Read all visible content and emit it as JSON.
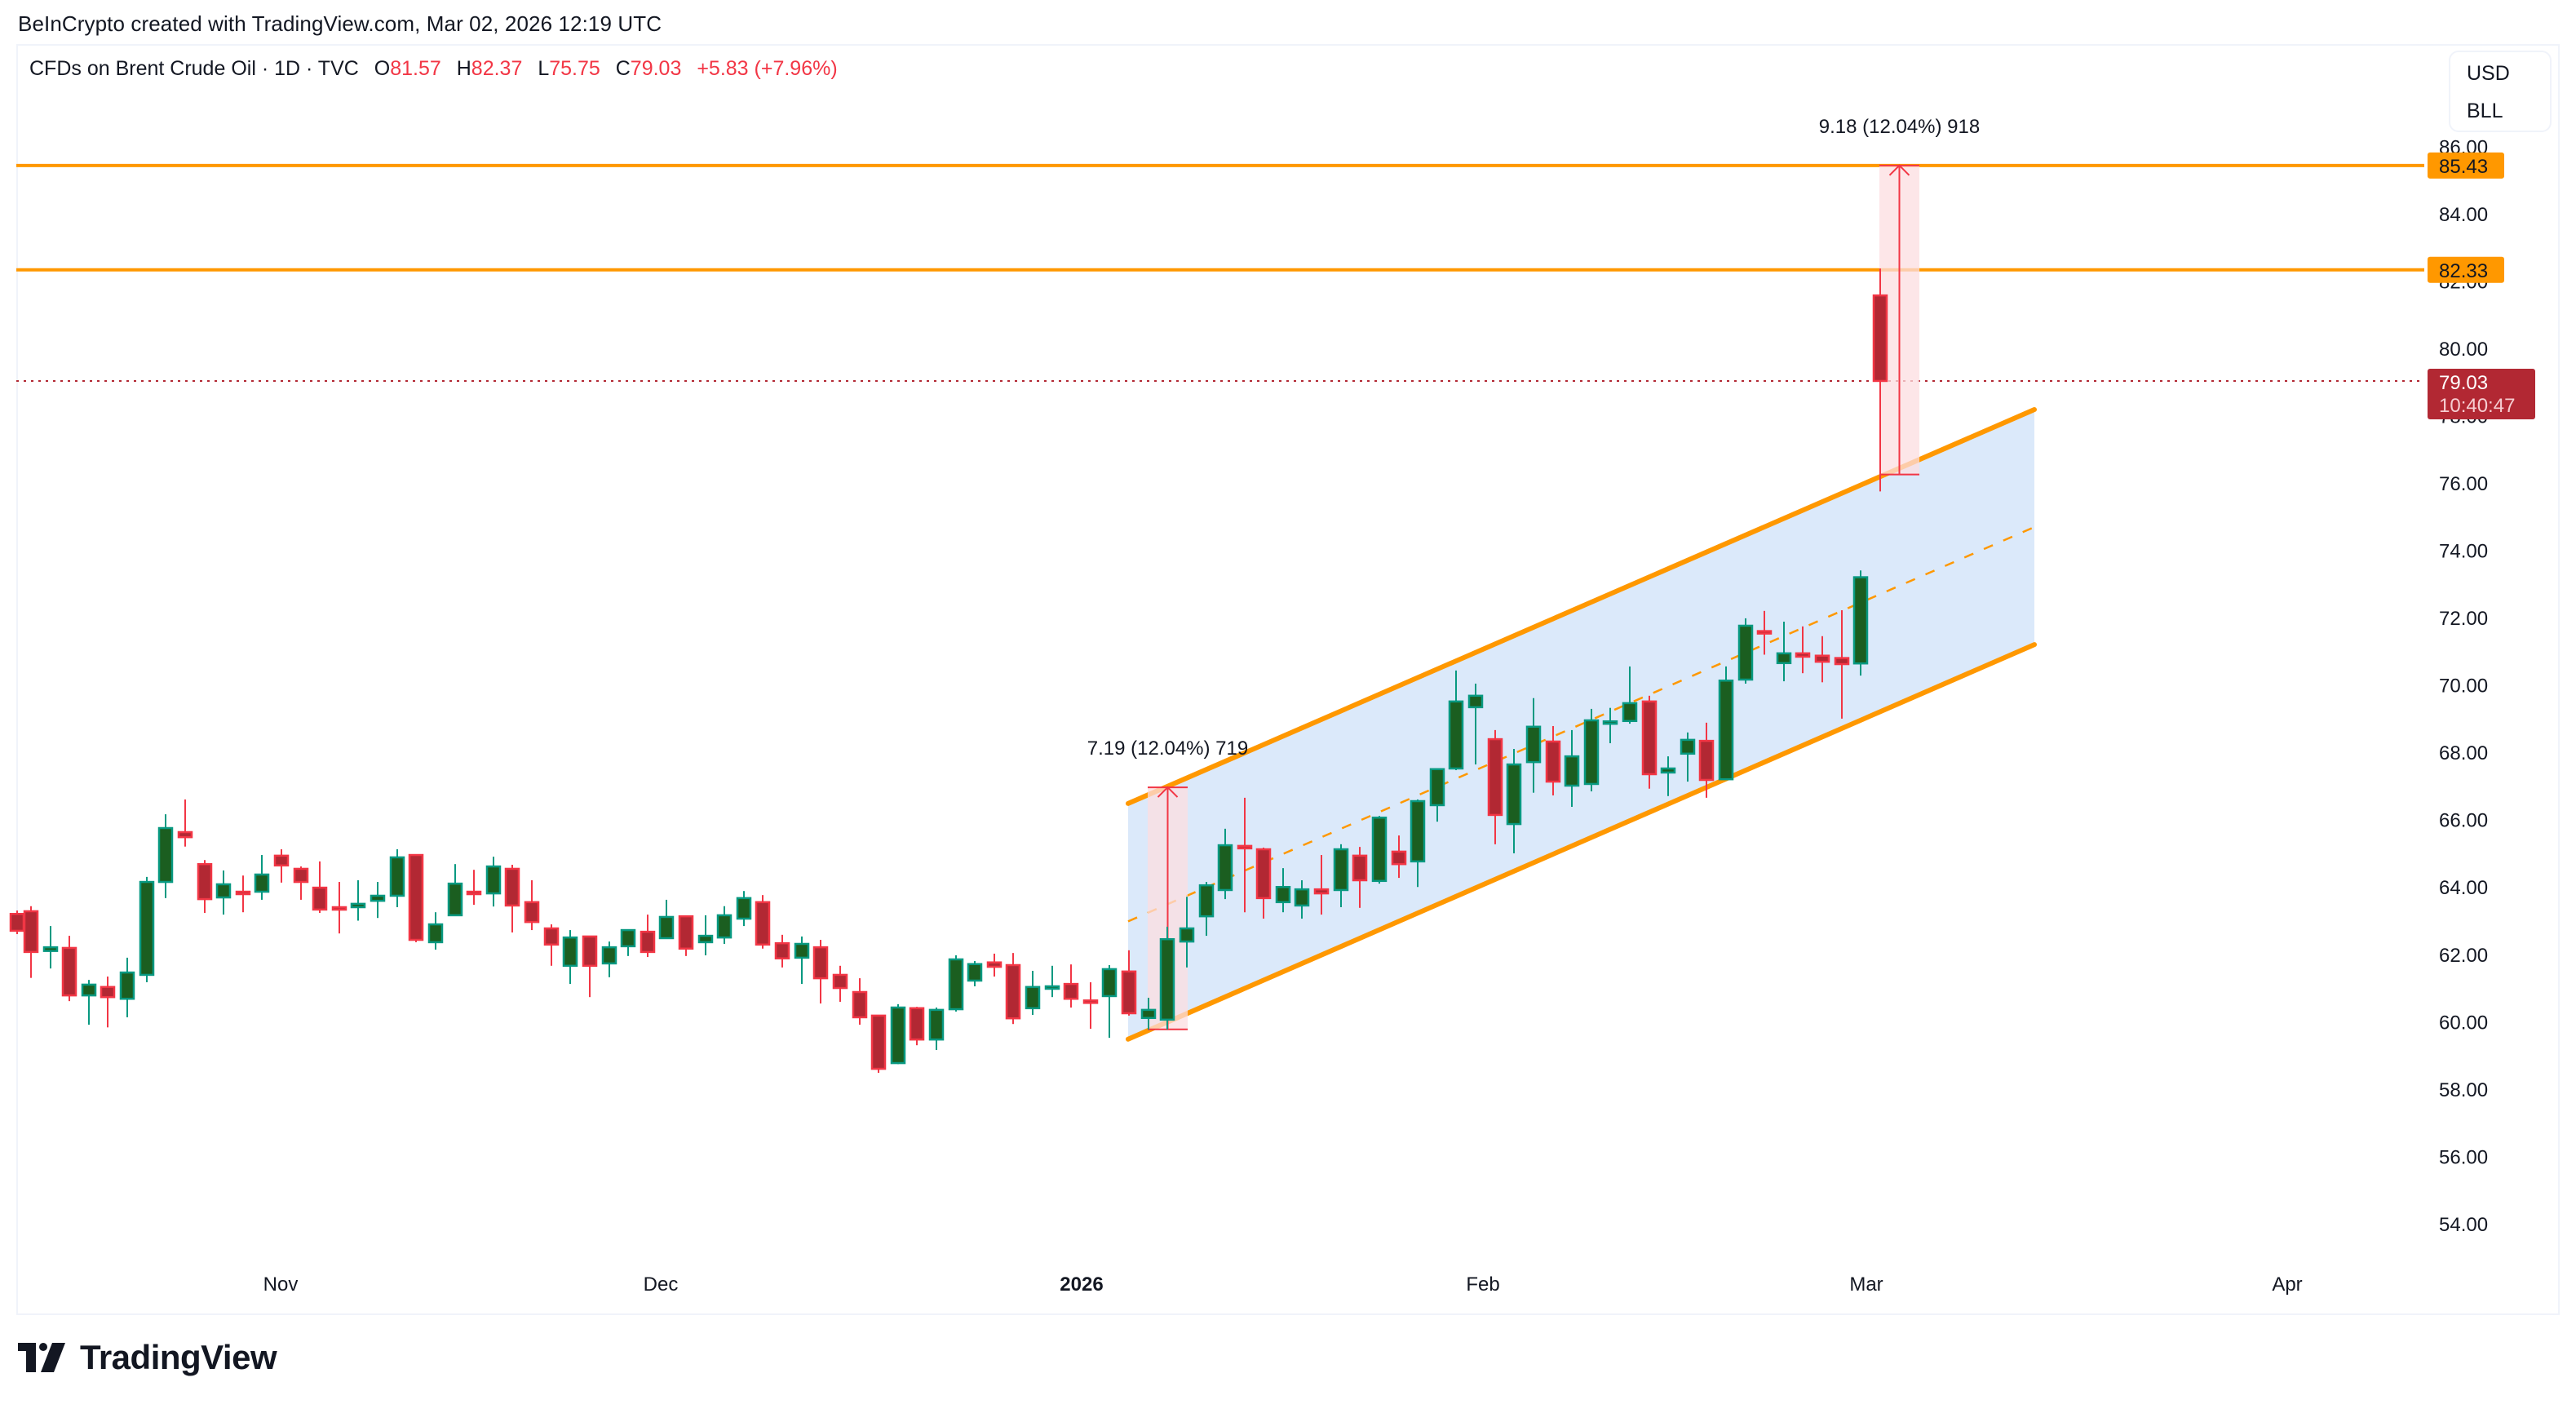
{
  "credit": "BeInCrypto created with TradingView.com, Mar 02, 2026 12:19 UTC",
  "legend": {
    "symbol": "CFDs on Brent Crude Oil · 1D · TVC",
    "open_label": "O",
    "open": "81.57",
    "high_label": "H",
    "high": "82.37",
    "low_label": "L",
    "low": "75.75",
    "close_label": "C",
    "close": "79.03",
    "change": "+5.83 (+7.96%)"
  },
  "currency": {
    "currency": "USD",
    "unit": "BLL"
  },
  "price_axis": {
    "ticks": [
      "86.00",
      "84.00",
      "82.00",
      "80.00",
      "78.00",
      "76.00",
      "74.00",
      "72.00",
      "70.00",
      "68.00",
      "66.00",
      "64.00",
      "62.00",
      "60.00",
      "58.00",
      "56.00",
      "54.00"
    ],
    "level_labels": [
      {
        "value": "85.43",
        "price": 85.43,
        "color": "#ff9800"
      },
      {
        "value": "82.33",
        "price": 82.33,
        "color": "#ff9800"
      }
    ],
    "last_price": {
      "value": "79.03",
      "countdown": "10:40:47",
      "color": "#b22833"
    }
  },
  "time_axis": [
    {
      "label": "Nov",
      "x": 344,
      "bold": false
    },
    {
      "label": "Dec",
      "x": 810,
      "bold": false
    },
    {
      "label": "2026",
      "x": 1326,
      "bold": true
    },
    {
      "label": "Feb",
      "x": 1818,
      "bold": false
    },
    {
      "label": "Mar",
      "x": 2288,
      "bold": false
    },
    {
      "label": "Apr",
      "x": 2804,
      "bold": false
    }
  ],
  "measurements": [
    {
      "label": "7.19 (12.04%) 719",
      "from": 59.77,
      "to": 66.96,
      "x1": 1407,
      "x2": 1456
    },
    {
      "label": "9.18 (12.04%) 918",
      "from": 76.25,
      "to": 85.43,
      "x1": 2304,
      "x2": 2353
    }
  ],
  "brand": {
    "name": "TradingView"
  },
  "colors": {
    "up_border": "#089981",
    "up_fill": "#1b5e20",
    "down_border": "#f23645",
    "down_fill": "#b22833",
    "channel": "#ff9800",
    "channel_fill": "#dbe9fa",
    "measure_fill": "#fcdde0",
    "measure_line": "#f23645"
  },
  "chart_data": {
    "type": "candlestick",
    "title": "CFDs on Brent Crude Oil · 1D · TVC",
    "xlabel": "",
    "ylabel": "USD / BLL",
    "ylim": [
      53,
      87
    ],
    "x_ticks": [
      "Nov",
      "Dec",
      "2026",
      "Feb",
      "Mar",
      "Apr"
    ],
    "y_ticks": [
      54,
      56,
      58,
      60,
      62,
      64,
      66,
      68,
      70,
      72,
      74,
      76,
      78,
      80,
      82,
      84,
      86
    ],
    "grid": false,
    "horizontal_levels": [
      85.43,
      82.33
    ],
    "last_price": 79.03,
    "channel": {
      "upper": [
        [
          1383,
          66.48
        ],
        [
          2494,
          78.18
        ]
      ],
      "lower": [
        [
          1383,
          59.48
        ],
        [
          2494,
          71.2
        ]
      ],
      "middle_dashed": true
    },
    "candles": [
      {
        "x": 21,
        "o": 63.2,
        "h": 63.3,
        "l": 62.6,
        "c": 62.7
      },
      {
        "x": 38,
        "o": 63.28,
        "h": 63.43,
        "l": 61.3,
        "c": 62.07
      },
      {
        "x": 62,
        "o": 62.1,
        "h": 62.84,
        "l": 61.58,
        "c": 62.21
      },
      {
        "x": 85,
        "o": 62.19,
        "h": 62.55,
        "l": 60.61,
        "c": 60.78
      },
      {
        "x": 109,
        "o": 60.78,
        "h": 61.24,
        "l": 59.91,
        "c": 61.1
      },
      {
        "x": 132,
        "o": 61.03,
        "h": 61.34,
        "l": 59.83,
        "c": 60.73
      },
      {
        "x": 156,
        "o": 60.68,
        "h": 61.9,
        "l": 60.13,
        "c": 61.46
      },
      {
        "x": 180,
        "o": 61.39,
        "h": 64.3,
        "l": 61.17,
        "c": 64.15
      },
      {
        "x": 203,
        "o": 64.15,
        "h": 66.16,
        "l": 63.67,
        "c": 65.75
      },
      {
        "x": 227,
        "o": 65.63,
        "h": 66.6,
        "l": 65.2,
        "c": 65.48
      },
      {
        "x": 251,
        "o": 64.68,
        "h": 64.8,
        "l": 63.23,
        "c": 63.64
      },
      {
        "x": 274,
        "o": 63.69,
        "h": 64.49,
        "l": 63.18,
        "c": 64.08
      },
      {
        "x": 298,
        "o": 63.86,
        "h": 64.34,
        "l": 63.25,
        "c": 63.81
      },
      {
        "x": 321,
        "o": 63.86,
        "h": 64.95,
        "l": 63.62,
        "c": 64.37
      },
      {
        "x": 345,
        "o": 64.93,
        "h": 65.12,
        "l": 64.13,
        "c": 64.64
      },
      {
        "x": 369,
        "o": 64.54,
        "h": 64.61,
        "l": 63.62,
        "c": 64.15
      },
      {
        "x": 392,
        "o": 63.98,
        "h": 64.76,
        "l": 63.23,
        "c": 63.33
      },
      {
        "x": 416,
        "o": 63.4,
        "h": 64.15,
        "l": 62.62,
        "c": 63.35
      },
      {
        "x": 439,
        "o": 63.4,
        "h": 64.2,
        "l": 63.0,
        "c": 63.5
      },
      {
        "x": 463,
        "o": 63.59,
        "h": 64.15,
        "l": 63.08,
        "c": 63.74
      },
      {
        "x": 487,
        "o": 63.74,
        "h": 65.12,
        "l": 63.4,
        "c": 64.88
      },
      {
        "x": 510,
        "o": 64.95,
        "h": 64.95,
        "l": 62.36,
        "c": 62.43
      },
      {
        "x": 534,
        "o": 62.36,
        "h": 63.25,
        "l": 62.14,
        "c": 62.89
      },
      {
        "x": 558,
        "o": 63.16,
        "h": 64.68,
        "l": 63.16,
        "c": 64.1
      },
      {
        "x": 581,
        "o": 63.86,
        "h": 64.51,
        "l": 63.47,
        "c": 63.81
      },
      {
        "x": 605,
        "o": 63.81,
        "h": 64.9,
        "l": 63.42,
        "c": 64.61
      },
      {
        "x": 628,
        "o": 64.54,
        "h": 64.66,
        "l": 62.65,
        "c": 63.45
      },
      {
        "x": 652,
        "o": 63.55,
        "h": 64.2,
        "l": 62.72,
        "c": 62.96
      },
      {
        "x": 676,
        "o": 62.77,
        "h": 62.89,
        "l": 61.66,
        "c": 62.29
      },
      {
        "x": 699,
        "o": 61.66,
        "h": 62.72,
        "l": 61.12,
        "c": 62.5
      },
      {
        "x": 723,
        "o": 62.53,
        "h": 62.55,
        "l": 60.73,
        "c": 61.66
      },
      {
        "x": 747,
        "o": 61.73,
        "h": 62.38,
        "l": 61.32,
        "c": 62.21
      },
      {
        "x": 770,
        "o": 62.24,
        "h": 62.74,
        "l": 61.95,
        "c": 62.72
      },
      {
        "x": 794,
        "o": 62.67,
        "h": 63.18,
        "l": 61.92,
        "c": 62.07
      },
      {
        "x": 817,
        "o": 62.48,
        "h": 63.62,
        "l": 62.48,
        "c": 63.11
      },
      {
        "x": 841,
        "o": 63.13,
        "h": 63.13,
        "l": 61.95,
        "c": 62.17
      },
      {
        "x": 865,
        "o": 62.36,
        "h": 63.16,
        "l": 61.97,
        "c": 62.55
      },
      {
        "x": 888,
        "o": 62.5,
        "h": 63.43,
        "l": 62.31,
        "c": 63.16
      },
      {
        "x": 912,
        "o": 63.06,
        "h": 63.88,
        "l": 62.84,
        "c": 63.67
      },
      {
        "x": 935,
        "o": 63.55,
        "h": 63.76,
        "l": 62.17,
        "c": 62.29
      },
      {
        "x": 959,
        "o": 62.33,
        "h": 62.58,
        "l": 61.61,
        "c": 61.88
      },
      {
        "x": 983,
        "o": 61.9,
        "h": 62.53,
        "l": 61.12,
        "c": 62.31
      },
      {
        "x": 1006,
        "o": 62.21,
        "h": 62.43,
        "l": 60.54,
        "c": 61.29
      },
      {
        "x": 1030,
        "o": 61.39,
        "h": 61.66,
        "l": 60.59,
        "c": 61.0
      },
      {
        "x": 1054,
        "o": 60.88,
        "h": 61.29,
        "l": 59.91,
        "c": 60.13
      },
      {
        "x": 1077,
        "o": 60.18,
        "h": 60.18,
        "l": 58.48,
        "c": 58.6
      },
      {
        "x": 1101,
        "o": 58.77,
        "h": 60.52,
        "l": 58.74,
        "c": 60.42
      },
      {
        "x": 1124,
        "o": 60.4,
        "h": 60.44,
        "l": 59.3,
        "c": 59.47
      },
      {
        "x": 1148,
        "o": 59.47,
        "h": 60.42,
        "l": 59.16,
        "c": 60.35
      },
      {
        "x": 1172,
        "o": 60.37,
        "h": 61.97,
        "l": 60.3,
        "c": 61.85
      },
      {
        "x": 1195,
        "o": 61.22,
        "h": 61.8,
        "l": 61.05,
        "c": 61.71
      },
      {
        "x": 1219,
        "o": 61.76,
        "h": 62.02,
        "l": 61.34,
        "c": 61.63
      },
      {
        "x": 1242,
        "o": 61.68,
        "h": 62.04,
        "l": 59.93,
        "c": 60.1
      },
      {
        "x": 1266,
        "o": 60.4,
        "h": 61.51,
        "l": 60.2,
        "c": 61.03
      },
      {
        "x": 1290,
        "o": 60.98,
        "h": 61.66,
        "l": 60.73,
        "c": 61.05
      },
      {
        "x": 1313,
        "o": 61.12,
        "h": 61.7,
        "l": 60.42,
        "c": 60.68
      },
      {
        "x": 1337,
        "o": 60.63,
        "h": 61.17,
        "l": 59.79,
        "c": 60.56
      },
      {
        "x": 1360,
        "o": 60.76,
        "h": 61.68,
        "l": 59.52,
        "c": 61.56
      },
      {
        "x": 1384,
        "o": 61.49,
        "h": 62.12,
        "l": 60.18,
        "c": 60.25
      },
      {
        "x": 1408,
        "o": 60.11,
        "h": 60.71,
        "l": 59.77,
        "c": 60.35
      },
      {
        "x": 1431,
        "o": 60.06,
        "h": 62.82,
        "l": 59.77,
        "c": 62.45
      },
      {
        "x": 1455,
        "o": 62.38,
        "h": 63.71,
        "l": 61.61,
        "c": 62.77
      },
      {
        "x": 1479,
        "o": 63.13,
        "h": 64.15,
        "l": 62.55,
        "c": 64.05
      },
      {
        "x": 1502,
        "o": 63.91,
        "h": 65.73,
        "l": 63.64,
        "c": 65.24
      },
      {
        "x": 1526,
        "o": 65.22,
        "h": 66.65,
        "l": 63.25,
        "c": 65.19
      },
      {
        "x": 1549,
        "o": 65.12,
        "h": 65.17,
        "l": 63.06,
        "c": 63.67
      },
      {
        "x": 1573,
        "o": 63.55,
        "h": 64.56,
        "l": 63.25,
        "c": 64.0
      },
      {
        "x": 1596,
        "o": 63.45,
        "h": 64.2,
        "l": 63.06,
        "c": 63.93
      },
      {
        "x": 1620,
        "o": 63.93,
        "h": 64.95,
        "l": 63.18,
        "c": 63.81
      },
      {
        "x": 1644,
        "o": 63.91,
        "h": 65.27,
        "l": 63.4,
        "c": 65.12
      },
      {
        "x": 1667,
        "o": 64.93,
        "h": 65.19,
        "l": 63.38,
        "c": 64.2
      },
      {
        "x": 1691,
        "o": 64.18,
        "h": 66.11,
        "l": 64.1,
        "c": 66.06
      },
      {
        "x": 1715,
        "o": 65.05,
        "h": 65.53,
        "l": 64.27,
        "c": 64.68
      },
      {
        "x": 1738,
        "o": 64.76,
        "h": 66.6,
        "l": 64.0,
        "c": 66.55
      },
      {
        "x": 1762,
        "o": 66.43,
        "h": 67.52,
        "l": 65.94,
        "c": 67.5
      },
      {
        "x": 1785,
        "o": 67.52,
        "h": 70.43,
        "l": 67.47,
        "c": 69.51
      },
      {
        "x": 1809,
        "o": 69.34,
        "h": 70.04,
        "l": 67.64,
        "c": 69.68
      },
      {
        "x": 1833,
        "o": 68.39,
        "h": 68.66,
        "l": 65.27,
        "c": 66.14
      },
      {
        "x": 1856,
        "o": 65.87,
        "h": 68.1,
        "l": 65.0,
        "c": 67.64
      },
      {
        "x": 1880,
        "o": 67.71,
        "h": 69.61,
        "l": 66.8,
        "c": 68.76
      },
      {
        "x": 1904,
        "o": 68.32,
        "h": 68.78,
        "l": 66.72,
        "c": 67.13
      },
      {
        "x": 1927,
        "o": 67.01,
        "h": 68.66,
        "l": 66.38,
        "c": 67.88
      },
      {
        "x": 1951,
        "o": 67.06,
        "h": 69.29,
        "l": 66.84,
        "c": 68.95
      },
      {
        "x": 1974,
        "o": 68.88,
        "h": 69.32,
        "l": 68.27,
        "c": 68.92
      },
      {
        "x": 1998,
        "o": 68.93,
        "h": 70.55,
        "l": 68.85,
        "c": 69.46
      },
      {
        "x": 2022,
        "o": 69.51,
        "h": 69.68,
        "l": 66.92,
        "c": 67.35
      },
      {
        "x": 2045,
        "o": 67.4,
        "h": 67.88,
        "l": 66.7,
        "c": 67.52
      },
      {
        "x": 2069,
        "o": 67.96,
        "h": 68.59,
        "l": 67.13,
        "c": 68.37
      },
      {
        "x": 2092,
        "o": 68.34,
        "h": 68.88,
        "l": 66.65,
        "c": 67.18
      },
      {
        "x": 2116,
        "o": 67.2,
        "h": 70.55,
        "l": 67.2,
        "c": 70.13
      },
      {
        "x": 2140,
        "o": 70.16,
        "h": 71.98,
        "l": 70.04,
        "c": 71.76
      },
      {
        "x": 2163,
        "o": 71.6,
        "h": 72.2,
        "l": 70.9,
        "c": 71.57
      },
      {
        "x": 2187,
        "o": 70.65,
        "h": 71.88,
        "l": 70.11,
        "c": 70.94
      },
      {
        "x": 2210,
        "o": 70.94,
        "h": 71.74,
        "l": 70.35,
        "c": 70.84
      },
      {
        "x": 2234,
        "o": 70.87,
        "h": 71.45,
        "l": 70.08,
        "c": 70.69
      },
      {
        "x": 2258,
        "o": 70.8,
        "h": 72.22,
        "l": 69.0,
        "c": 70.62
      },
      {
        "x": 2281,
        "o": 70.64,
        "h": 73.4,
        "l": 70.28,
        "c": 73.2
      },
      {
        "x": 2305,
        "o": 81.57,
        "h": 82.37,
        "l": 75.75,
        "c": 79.03
      }
    ]
  }
}
